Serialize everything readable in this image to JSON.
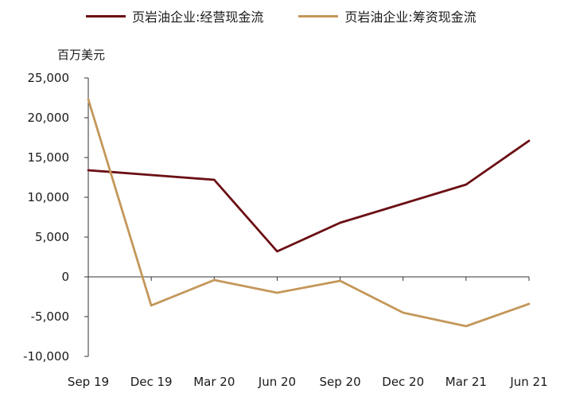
{
  "chart_data": {
    "type": "line",
    "title": "",
    "ylabel": "百万美元",
    "xlabel": "",
    "categories": [
      "Sep 19",
      "Dec 19",
      "Mar 20",
      "Jun 20",
      "Sep 20",
      "Dec 20",
      "Mar 21",
      "Jun 21"
    ],
    "series": [
      {
        "name": "页岩油企业:经营现金流",
        "color": "#6b0f14",
        "values": [
          13400,
          12800,
          12200,
          3200,
          6800,
          9200,
          11600,
          17100
        ]
      },
      {
        "name": "页岩油企业:筹资现金流",
        "color": "#c4975a",
        "values": [
          22300,
          -3600,
          -400,
          -2000,
          -500,
          -4500,
          -6200,
          -3400
        ]
      }
    ],
    "ylim": [
      -10000,
      25000
    ],
    "yticks": [
      25000,
      20000,
      15000,
      10000,
      5000,
      0,
      -5000,
      -10000
    ],
    "ytick_labels": [
      "25,000",
      "20,000",
      "15,000",
      "10,000",
      "5,000",
      "0",
      "-5,000",
      "-10,000"
    ],
    "grid": false,
    "legend_position": "top"
  }
}
